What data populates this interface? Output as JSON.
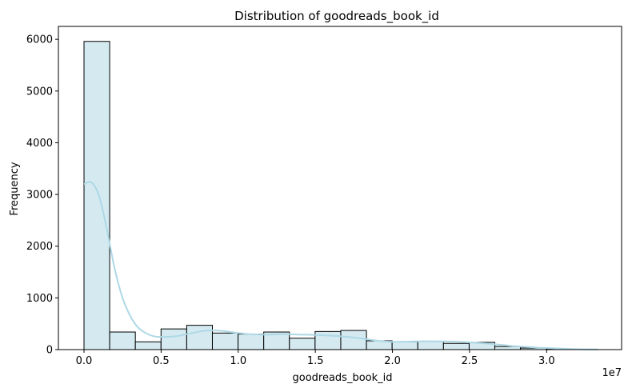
{
  "chart_data": {
    "type": "bar",
    "title": "Distribution of goodreads_book_id",
    "xlabel": "goodreads_book_id",
    "ylabel": "Frequency",
    "x_offset_text": "1e7",
    "xlim": [
      -0.166,
      3.486
    ],
    "ylim": [
      0,
      6250
    ],
    "xticks": [
      0.0,
      0.5,
      1.0,
      1.5,
      2.0,
      2.5,
      3.0
    ],
    "xtick_labels": [
      "0.0",
      "0.5",
      "1.0",
      "1.5",
      "2.0",
      "2.5",
      "3.0"
    ],
    "yticks": [
      0,
      1000,
      2000,
      3000,
      4000,
      5000,
      6000
    ],
    "ytick_labels": [
      "0",
      "1000",
      "2000",
      "3000",
      "4000",
      "5000",
      "6000"
    ],
    "bin_edges": [
      0.0,
      0.1665,
      0.333,
      0.4995,
      0.666,
      0.8325,
      0.999,
      1.1655,
      1.332,
      1.4985,
      1.665,
      1.8315,
      1.998,
      2.1645,
      2.331,
      2.4975,
      2.664,
      2.8305,
      2.997,
      3.1635,
      3.33
    ],
    "series": [
      {
        "values": [
          5960,
          340,
          150,
          400,
          470,
          320,
          300,
          340,
          220,
          350,
          370,
          170,
          150,
          160,
          120,
          140,
          60,
          30,
          10,
          5
        ]
      }
    ],
    "kde": {
      "x": [
        0.0,
        0.05,
        0.1,
        0.15,
        0.2,
        0.25,
        0.3,
        0.35,
        0.4,
        0.45,
        0.5,
        0.6,
        0.7,
        0.8,
        0.9,
        1.0,
        1.1,
        1.2,
        1.3,
        1.4,
        1.5,
        1.6,
        1.7,
        1.8,
        1.9,
        2.0,
        2.2,
        2.4,
        2.6,
        2.8,
        3.0,
        3.2,
        3.33
      ],
      "y": [
        3200,
        3230,
        2950,
        2300,
        1550,
        1000,
        650,
        430,
        320,
        260,
        245,
        260,
        320,
        370,
        360,
        320,
        295,
        290,
        300,
        290,
        285,
        270,
        250,
        215,
        175,
        150,
        160,
        155,
        120,
        65,
        30,
        8,
        3
      ]
    },
    "colors": {
      "bar_fill": "#d4eaf0",
      "bar_edge": "#000000",
      "kde_line": "#add8e6"
    },
    "grid": false,
    "legend": "none"
  }
}
